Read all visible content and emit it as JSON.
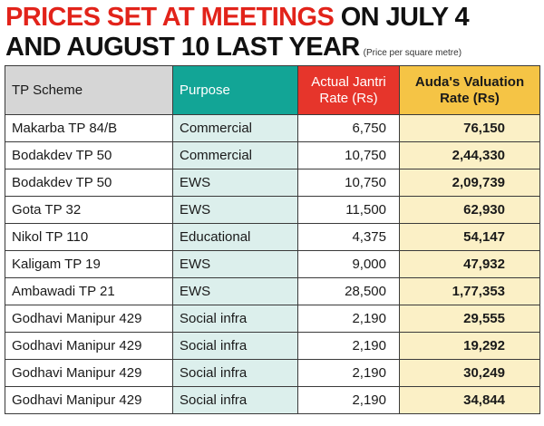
{
  "header": {
    "title_red": "PRICES SET AT MEETINGS",
    "title_black": "ON JULY 4",
    "title_line2": "AND AUGUST 10 LAST YEAR",
    "note": "(Price per square metre)"
  },
  "table": {
    "headers": [
      "TP Scheme",
      "Purpose",
      "Actual Jantri Rate (Rs)",
      "Auda's Valuation Rate (Rs)"
    ],
    "rows": [
      [
        "Makarba TP 84/B",
        "Commercial",
        "6,750",
        "76,150"
      ],
      [
        "Bodakdev TP 50",
        "Commercial",
        "10,750",
        "2,44,330"
      ],
      [
        "Bodakdev TP 50",
        "EWS",
        "10,750",
        "2,09,739"
      ],
      [
        "Gota TP 32",
        "EWS",
        "11,500",
        "62,930"
      ],
      [
        "Nikol TP 110",
        "Educational",
        "4,375",
        "54,147"
      ],
      [
        "Kaligam TP 19",
        "EWS",
        "9,000",
        "47,932"
      ],
      [
        "Ambawadi TP 21",
        "EWS",
        "28,500",
        "1,77,353"
      ],
      [
        "Godhavi Manipur 429",
        "Social infra",
        "2,190",
        "29,555"
      ],
      [
        "Godhavi Manipur 429",
        "Social infra",
        "2,190",
        "19,292"
      ],
      [
        "Godhavi Manipur 429",
        "Social infra",
        "2,190",
        "30,249"
      ],
      [
        "Godhavi Manipur 429",
        "Social infra",
        "2,190",
        "34,844"
      ]
    ]
  }
}
